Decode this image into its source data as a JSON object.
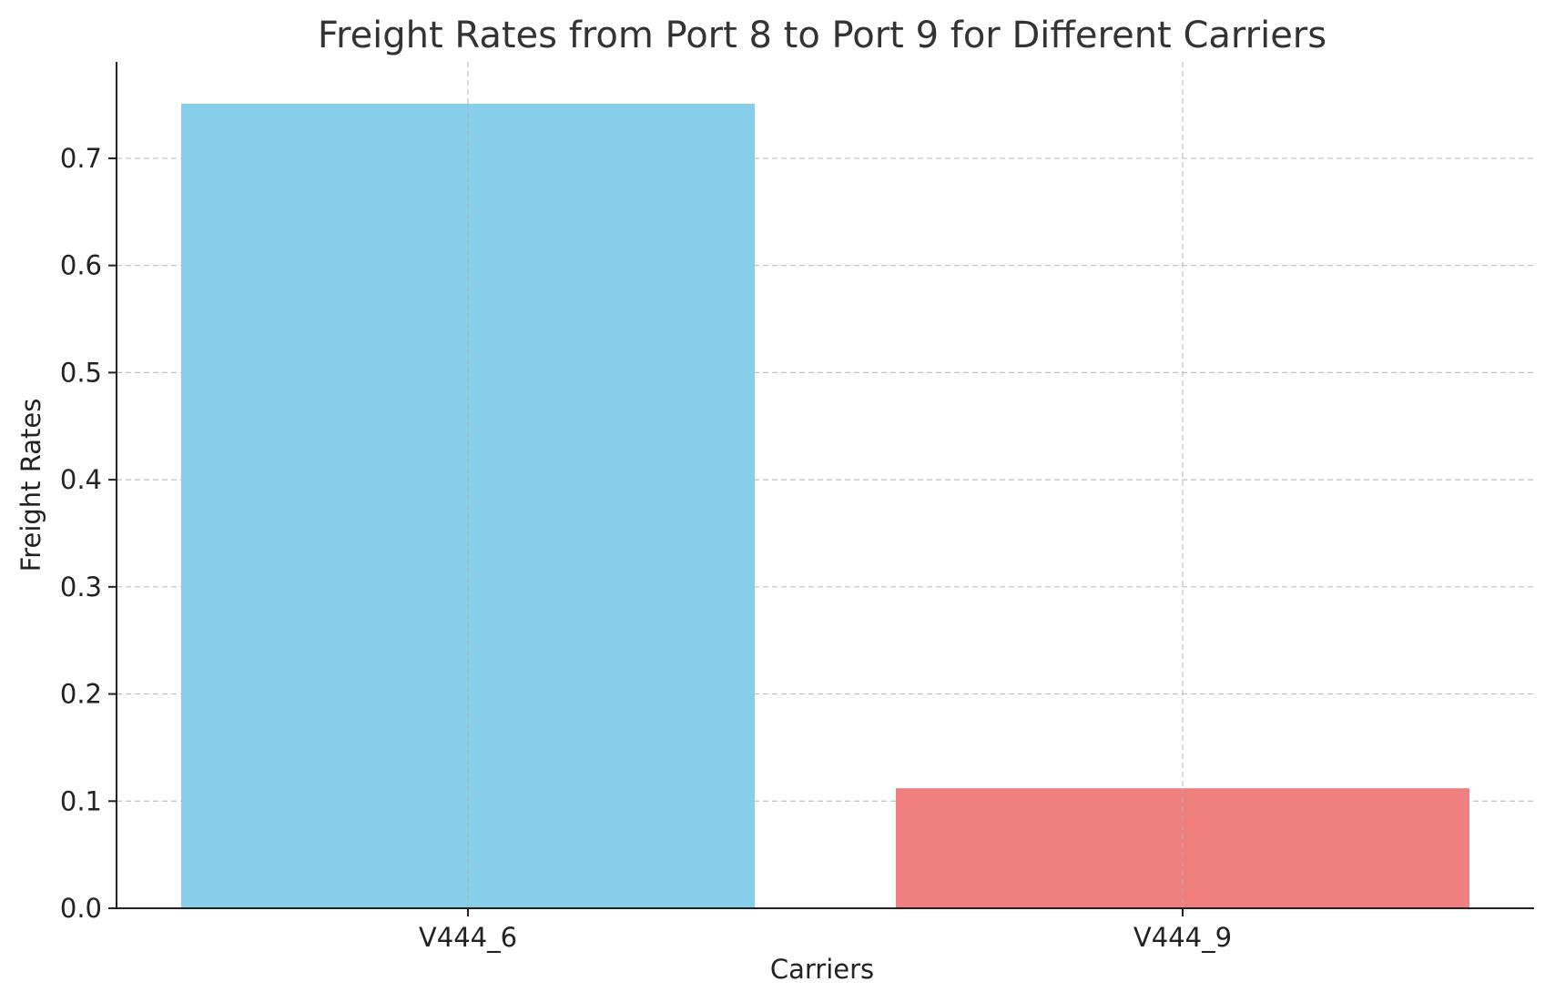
{
  "chart_data": {
    "type": "bar",
    "title": "Freight Rates from Port 8 to Port 9 for Different Carriers",
    "xlabel": "Carriers",
    "ylabel": "Freight Rates",
    "categories": [
      "V444_6",
      "V444_9"
    ],
    "values": [
      0.751,
      0.112
    ],
    "colors": [
      "#87ceeb",
      "#f08080"
    ],
    "ylim": [
      0,
      0.79
    ],
    "yticks": [
      0.0,
      0.1,
      0.2,
      0.3,
      0.4,
      0.5,
      0.6,
      0.7
    ],
    "ytick_labels": [
      "0.0",
      "0.1",
      "0.2",
      "0.3",
      "0.4",
      "0.5",
      "0.6",
      "0.7"
    ],
    "grid": true,
    "grid_style": "dashed"
  }
}
